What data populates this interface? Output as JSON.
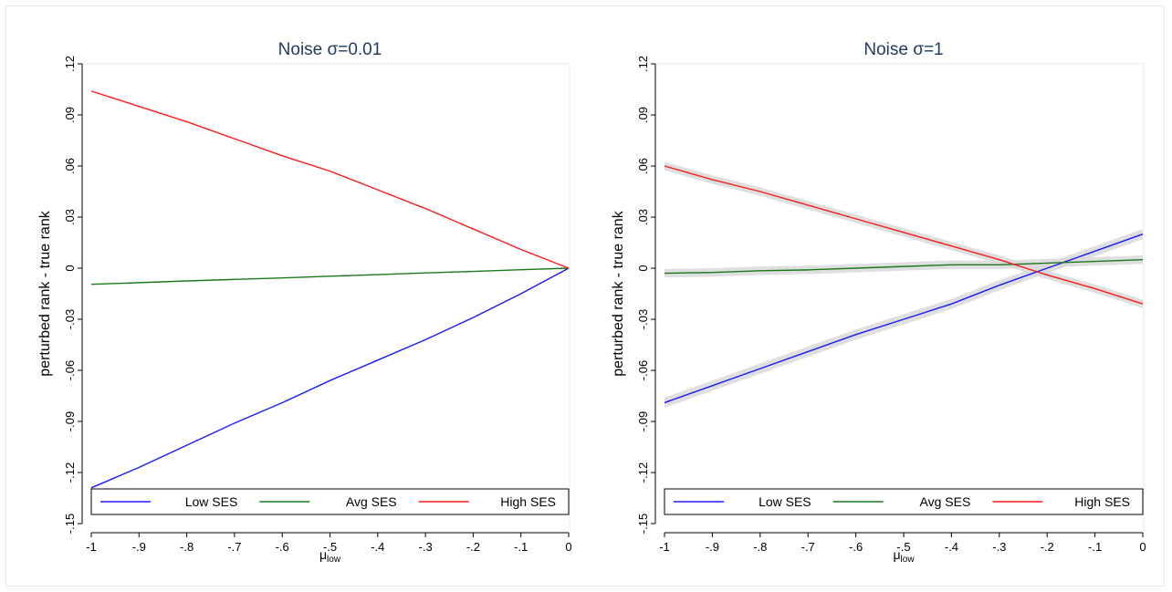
{
  "chart_data": [
    {
      "type": "line",
      "title": "Noise σ=0.01",
      "xlabel": "μ",
      "xlabel_sub": "low",
      "ylabel": "perturbed rank - true rank",
      "xlim": [
        -1,
        0
      ],
      "ylim": [
        -0.15,
        0.12
      ],
      "x_ticks": [
        -1,
        -0.9,
        -0.8,
        -0.7,
        -0.6,
        -0.5,
        -0.4,
        -0.3,
        -0.2,
        -0.1,
        0
      ],
      "x_tick_labels": [
        "-1",
        "-.9",
        "-.8",
        "-.7",
        "-.6",
        "-.5",
        "-.4",
        "-.3",
        "-.2",
        "-.1",
        "0"
      ],
      "y_ticks": [
        -0.15,
        -0.12,
        -0.09,
        -0.06,
        -0.03,
        0,
        0.03,
        0.06,
        0.09,
        0.12
      ],
      "y_tick_labels": [
        "-.15",
        "-.12",
        "-.09",
        "-.06",
        "-.03",
        "0",
        ".03",
        ".06",
        ".09",
        ".12"
      ],
      "grid": false,
      "legend_position": "bottom-inside",
      "x": [
        -1,
        -0.9,
        -0.8,
        -0.7,
        -0.6,
        -0.5,
        -0.4,
        -0.3,
        -0.2,
        -0.1,
        0
      ],
      "series": [
        {
          "name": "Low SES",
          "color": "#1a1aff",
          "values": [
            -0.129,
            -0.117,
            -0.104,
            -0.091,
            -0.079,
            -0.066,
            -0.054,
            -0.042,
            -0.029,
            -0.015,
            0
          ],
          "band": false
        },
        {
          "name": "Avg SES",
          "color": "#1a7a1a",
          "values": [
            -0.0095,
            -0.0085,
            -0.0075,
            -0.0066,
            -0.0057,
            -0.0047,
            -0.0038,
            -0.0028,
            -0.0019,
            -0.0009,
            0
          ],
          "band": false
        },
        {
          "name": "High SES",
          "color": "#ff1a1a",
          "values": [
            0.104,
            0.095,
            0.086,
            0.076,
            0.066,
            0.057,
            0.046,
            0.035,
            0.023,
            0.011,
            0
          ],
          "band": false
        }
      ]
    },
    {
      "type": "line",
      "title": "Noise σ=1",
      "xlabel": "μ",
      "xlabel_sub": "low",
      "ylabel": "perturbed rank - true rank",
      "xlim": [
        -1,
        0
      ],
      "ylim": [
        -0.15,
        0.12
      ],
      "x_ticks": [
        -1,
        -0.9,
        -0.8,
        -0.7,
        -0.6,
        -0.5,
        -0.4,
        -0.3,
        -0.2,
        -0.1,
        0
      ],
      "x_tick_labels": [
        "-1",
        "-.9",
        "-.8",
        "-.7",
        "-.6",
        "-.5",
        "-.4",
        "-.3",
        "-.2",
        "-.1",
        "0"
      ],
      "y_ticks": [
        -0.15,
        -0.12,
        -0.09,
        -0.06,
        -0.03,
        0,
        0.03,
        0.06,
        0.09,
        0.12
      ],
      "y_tick_labels": [
        "-.15",
        "-.12",
        "-.09",
        "-.06",
        "-.03",
        "0",
        ".03",
        ".06",
        ".09",
        ".12"
      ],
      "grid": false,
      "legend_position": "bottom-inside",
      "x": [
        -1,
        -0.9,
        -0.8,
        -0.7,
        -0.6,
        -0.5,
        -0.4,
        -0.3,
        -0.2,
        -0.1,
        0
      ],
      "series": [
        {
          "name": "Low SES",
          "color": "#1a1aff",
          "values": [
            -0.079,
            -0.069,
            -0.059,
            -0.049,
            -0.039,
            -0.03,
            -0.021,
            -0.01,
            0.0,
            0.01,
            0.02
          ],
          "band": true,
          "band_halfwidth": 0.003
        },
        {
          "name": "Avg SES",
          "color": "#1a7a1a",
          "values": [
            -0.003,
            -0.0025,
            -0.0015,
            -0.001,
            0.0,
            0.001,
            0.002,
            0.002,
            0.003,
            0.004,
            0.005
          ],
          "band": true,
          "band_halfwidth": 0.0025
        },
        {
          "name": "High SES",
          "color": "#ff1a1a",
          "values": [
            0.06,
            0.052,
            0.045,
            0.037,
            0.029,
            0.021,
            0.013,
            0.005,
            -0.004,
            -0.012,
            -0.021
          ],
          "band": true,
          "band_halfwidth": 0.0025
        }
      ]
    }
  ],
  "colors": {
    "title": "#1e3a5f",
    "band": "#d9d9d9",
    "axis": "#000000",
    "frame": "#e7e9ec"
  }
}
